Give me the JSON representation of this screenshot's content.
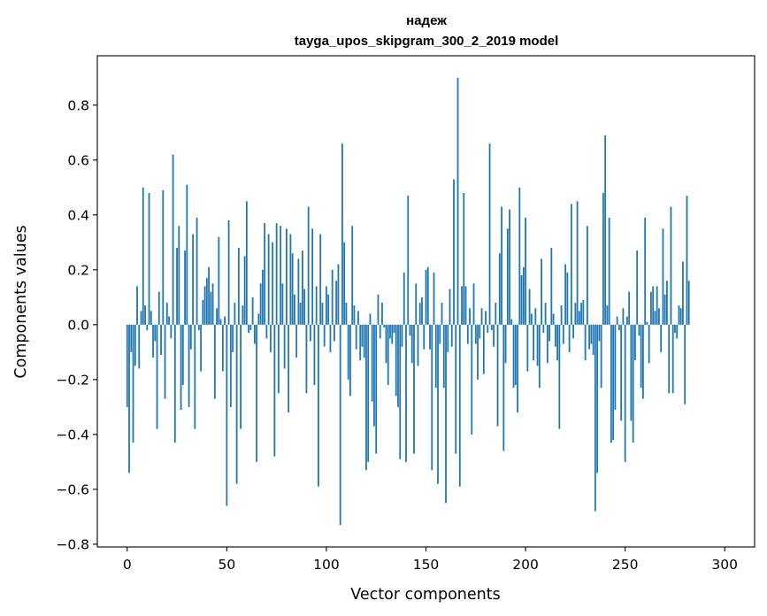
{
  "chart_data": {
    "type": "bar",
    "title_line1": "надеж",
    "title_line2": "tayga_upos_skipgram_300_2_2019 model",
    "xlabel": "Vector components",
    "ylabel": "Components values",
    "xlim": [
      -15,
      315
    ],
    "ylim": [
      -0.81,
      0.98
    ],
    "xticks": [
      0,
      50,
      100,
      150,
      200,
      250,
      300
    ],
    "yticks": [
      -0.8,
      -0.6,
      -0.4,
      -0.2,
      0.0,
      0.2,
      0.4,
      0.6,
      0.8
    ],
    "ytick_labels": [
      "−0.8",
      "−0.6",
      "−0.4",
      "−0.2",
      "0.0",
      "0.2",
      "0.4",
      "0.6",
      "0.8"
    ],
    "bar_color": "#1f77b4",
    "values": [
      -0.3,
      -0.54,
      -0.1,
      -0.43,
      -0.15,
      0.14,
      -0.16,
      0.05,
      0.5,
      0.07,
      -0.02,
      0.48,
      0.05,
      -0.12,
      -0.06,
      -0.38,
      0.12,
      -0.11,
      0.49,
      -0.27,
      0.08,
      0.03,
      -0.05,
      0.62,
      -0.43,
      0.28,
      0.36,
      -0.31,
      -0.22,
      0.27,
      0.51,
      -0.3,
      -0.09,
      0.33,
      -0.38,
      0.39,
      -0.02,
      -0.17,
      0.09,
      0.14,
      0.17,
      0.21,
      0.12,
      0.15,
      -0.27,
      0.06,
      0.32,
      0.02,
      -0.17,
      0.03,
      -0.66,
      0.38,
      -0.3,
      -0.1,
      0.08,
      -0.58,
      0.28,
      -0.38,
      0.07,
      0.25,
      0.45,
      -0.03,
      -0.02,
      0.1,
      -0.07,
      -0.5,
      0.04,
      0.15,
      0.2,
      0.37,
      -0.05,
      0.33,
      -0.1,
      0.3,
      -0.48,
      0.37,
      -0.25,
      0.36,
      0.15,
      -0.16,
      0.35,
      -0.32,
      0.33,
      0.26,
      0.11,
      -0.12,
      0.24,
      0.08,
      0.27,
      0.13,
      -0.25,
      0.43,
      -0.06,
      0.35,
      -0.22,
      0.14,
      -0.59,
      0.33,
      0.08,
      -0.08,
      0.14,
      0.11,
      -0.1,
      0.2,
      -0.06,
      0.16,
      0.22,
      -0.73,
      0.66,
      0.3,
      0.08,
      -0.2,
      -0.26,
      0.36,
      0.07,
      -0.09,
      0.05,
      -0.13,
      -0.08,
      -0.12,
      -0.53,
      -0.5,
      0.04,
      -0.28,
      -0.37,
      -0.47,
      0.11,
      -0.05,
      0.08,
      -0.01,
      -0.14,
      -0.22,
      -0.05,
      -0.07,
      -0.03,
      -0.26,
      -0.3,
      -0.49,
      -0.08,
      0.19,
      -0.5,
      0.47,
      -0.04,
      -0.14,
      -0.47,
      0.15,
      -0.15,
      0.08,
      0.1,
      -0.09,
      0.2,
      0.21,
      -0.09,
      -0.53,
      0.19,
      -0.23,
      -0.58,
      -0.07,
      0.08,
      -0.23,
      -0.65,
      -0.1,
      0.13,
      -0.08,
      0.53,
      -0.47,
      0.9,
      -0.59,
      0.14,
      0.48,
      0.14,
      -0.07,
      0.06,
      -0.4,
      0.15,
      -0.07,
      -0.2,
      -0.05,
      0.06,
      -0.18,
      0.05,
      -0.03,
      0.66,
      -0.02,
      -0.08,
      0.08,
      -0.37,
      0.26,
      0.43,
      -0.46,
      -0.14,
      0.35,
      0.42,
      0.02,
      -0.23,
      -0.22,
      -0.32,
      0.5,
      0.18,
      0.21,
      0.39,
      -0.17,
      0.13,
      0.04,
      -0.13,
      0.06,
      -0.15,
      -0.23,
      0.24,
      -0.03,
      0.08,
      -0.14,
      -0.06,
      0.28,
      0.04,
      -0.08,
      -0.13,
      -0.38,
      0.07,
      -0.07,
      0.22,
      0.19,
      -0.1,
      0.44,
      -0.05,
      0.08,
      0.45,
      0.05,
      0.08,
      0.09,
      -0.13,
      0.36,
      -0.09,
      -0.07,
      -0.11,
      -0.68,
      -0.54,
      -0.06,
      -0.23,
      0.48,
      0.69,
      0.07,
      0.39,
      -0.43,
      -0.42,
      -0.31,
      0.03,
      -0.02,
      -0.35,
      0.06,
      -0.5,
      0.03,
      0.12,
      -0.35,
      -0.43,
      -0.13,
      0.27,
      -0.04,
      -0.23,
      -0.27,
      0.39,
      0.01,
      -0.14,
      0.12,
      0.14,
      0.05,
      0.14,
      0.06,
      -0.1,
      0.35,
      0.11,
      0.16,
      -0.25,
      0.43,
      -0.25,
      -0.03,
      -0.05,
      0.07,
      0.06,
      0.23,
      -0.29,
      0.47,
      0.16
    ]
  }
}
